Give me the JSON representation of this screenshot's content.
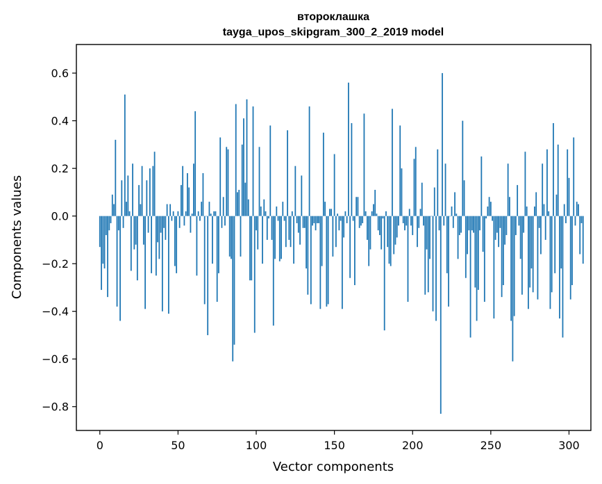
{
  "chart_data": {
    "type": "bar",
    "title_line1": "второклашка",
    "title_line2": "tayga_upos_skipgram_300_2_2019 model",
    "xlabel": "Vector components",
    "ylabel": "Components values",
    "xlim": [
      -15,
      314
    ],
    "ylim": [
      -0.9,
      0.72
    ],
    "x_ticks": [
      0,
      50,
      100,
      150,
      200,
      250,
      300
    ],
    "x_tick_labels": [
      "0",
      "50",
      "100",
      "150",
      "200",
      "250",
      "300"
    ],
    "y_ticks": [
      0.6,
      0.4,
      0.2,
      0.0,
      -0.2,
      -0.4,
      -0.6,
      -0.8
    ],
    "y_tick_labels": [
      "0.6",
      "0.4",
      "0.2",
      "0.0",
      "−0.2",
      "−0.4",
      "−0.6",
      "−0.8"
    ],
    "bar_color": "#1f77b4",
    "values": [
      -0.13,
      -0.31,
      -0.2,
      -0.22,
      -0.08,
      -0.34,
      -0.06,
      -0.03,
      0.09,
      0.05,
      0.32,
      -0.38,
      -0.06,
      -0.44,
      0.15,
      -0.05,
      0.51,
      0.06,
      0.17,
      0.02,
      -0.23,
      0.22,
      -0.14,
      -0.12,
      -0.27,
      0.13,
      0.05,
      0.21,
      -0.12,
      -0.39,
      0.15,
      -0.07,
      0.2,
      -0.24,
      0.21,
      0.27,
      -0.25,
      -0.11,
      -0.18,
      -0.07,
      -0.4,
      -0.05,
      -0.1,
      0.05,
      -0.41,
      0.05,
      -0.02,
      0.02,
      -0.21,
      -0.24,
      0.02,
      -0.05,
      0.13,
      0.21,
      -0.04,
      0.02,
      0.18,
      0.12,
      -0.07,
      0.01,
      0.22,
      0.44,
      -0.25,
      0.02,
      -0.02,
      0.06,
      0.18,
      -0.37,
      0.0,
      -0.5,
      0.06,
      0.01,
      -0.2,
      0.02,
      0.02,
      -0.36,
      -0.24,
      0.33,
      -0.05,
      0.08,
      -0.04,
      0.29,
      0.28,
      -0.17,
      -0.18,
      -0.61,
      -0.54,
      0.47,
      0.1,
      0.11,
      -0.17,
      0.3,
      0.41,
      0.14,
      0.49,
      0.07,
      -0.27,
      -0.27,
      0.46,
      -0.49,
      -0.06,
      -0.14,
      0.29,
      0.04,
      -0.2,
      0.07,
      0.02,
      -0.1,
      -0.01,
      0.38,
      -0.1,
      -0.46,
      -0.18,
      0.04,
      -0.02,
      -0.19,
      -0.18,
      0.06,
      -0.02,
      -0.13,
      0.36,
      -0.1,
      -0.13,
      0.02,
      -0.2,
      0.21,
      -0.03,
      -0.07,
      -0.12,
      0.17,
      -0.05,
      -0.05,
      -0.22,
      -0.33,
      0.46,
      -0.37,
      -0.04,
      -0.03,
      -0.06,
      -0.03,
      -0.03,
      -0.39,
      -0.21,
      0.35,
      0.06,
      -0.38,
      -0.37,
      0.03,
      0.03,
      -0.17,
      0.26,
      -0.13,
      0.01,
      -0.06,
      -0.02,
      -0.39,
      -0.09,
      0.02,
      -0.03,
      0.56,
      -0.26,
      0.39,
      -0.02,
      -0.29,
      0.08,
      0.08,
      -0.05,
      -0.04,
      -0.03,
      0.43,
      0.02,
      -0.1,
      -0.21,
      -0.14,
      0.02,
      0.05,
      0.11,
      0.01,
      -0.06,
      -0.08,
      -0.14,
      -0.01,
      -0.48,
      0.02,
      -0.13,
      -0.2,
      -0.21,
      0.45,
      -0.16,
      -0.12,
      -0.09,
      -0.04,
      0.38,
      0.2,
      -0.03,
      -0.06,
      -0.04,
      -0.36,
      0.03,
      -0.04,
      -0.08,
      0.24,
      0.29,
      -0.13,
      -0.05,
      0.03,
      0.14,
      -0.04,
      -0.33,
      -0.14,
      -0.32,
      -0.18,
      0.0,
      -0.4,
      0.12,
      -0.44,
      0.28,
      -0.06,
      -0.83,
      0.6,
      -0.04,
      0.22,
      -0.24,
      -0.38,
      0.0,
      0.04,
      -0.05,
      0.1,
      0.01,
      -0.18,
      -0.08,
      -0.07,
      0.4,
      0.15,
      -0.26,
      -0.16,
      -0.06,
      -0.51,
      -0.06,
      -0.07,
      -0.3,
      -0.44,
      -0.31,
      -0.06,
      0.25,
      -0.15,
      -0.36,
      -0.01,
      0.04,
      0.08,
      0.06,
      -0.02,
      -0.43,
      -0.1,
      -0.07,
      -0.13,
      -0.05,
      -0.34,
      -0.29,
      -0.12,
      -0.08,
      0.22,
      0.08,
      -0.44,
      -0.61,
      -0.42,
      -0.08,
      0.13,
      -0.04,
      -0.18,
      -0.33,
      -0.07,
      0.27,
      0.04,
      -0.39,
      -0.3,
      -0.22,
      -0.32,
      0.04,
      0.1,
      -0.35,
      -0.05,
      -0.16,
      0.22,
      0.05,
      -0.1,
      0.28,
      0.02,
      -0.39,
      -0.32,
      0.39,
      -0.24,
      0.09,
      0.3,
      -0.43,
      -0.22,
      -0.51,
      0.05,
      -0.03,
      0.28,
      0.16,
      -0.35,
      -0.29,
      0.33,
      -0.04,
      0.06,
      0.05,
      -0.16,
      -0.03,
      -0.2
    ]
  }
}
